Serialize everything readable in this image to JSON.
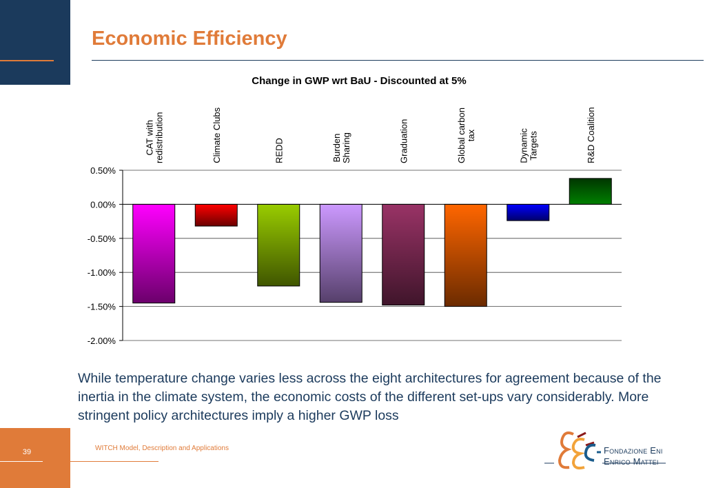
{
  "slide": {
    "title": "Economic Efficiency",
    "body": "While temperature change varies less across the eight architectures for agreement because of the inertia in the climate system, the economic costs of the different set-ups vary considerably. More stringent policy architectures imply a higher GWP loss",
    "page_number": "39",
    "footer": "WITCH Model, Description and Applications",
    "logo_line1": "Fondazione Eni",
    "logo_line2": "Enrico Mattei"
  },
  "chart_data": {
    "type": "bar",
    "title": "Change in GWP wrt BaU - Discounted at 5%",
    "categories": [
      [
        "CAT with",
        "redistribution"
      ],
      [
        "Climate Clubs"
      ],
      [
        "REDD"
      ],
      [
        "Burden",
        "Sharing"
      ],
      [
        "Graduation"
      ],
      [
        "Global carbon",
        "tax"
      ],
      [
        "Dynamic",
        "Targets"
      ],
      [
        "R&D Coalition"
      ]
    ],
    "values": [
      -1.45,
      -0.32,
      -1.2,
      -1.44,
      -1.48,
      -1.5,
      -0.24,
      0.38
    ],
    "colors": [
      "#ff00ff",
      "#ff0000",
      "#99cc00",
      "#cc99ff",
      "#993366",
      "#ff6600",
      "#0000ff",
      "#008000"
    ],
    "ylim": [
      -2.0,
      0.5
    ],
    "yticks": [
      "0.50%",
      "0.00%",
      "-0.50%",
      "-1.00%",
      "-1.50%",
      "-2.00%"
    ],
    "xlabel": "",
    "ylabel": "",
    "grid": true,
    "legend": "none"
  }
}
